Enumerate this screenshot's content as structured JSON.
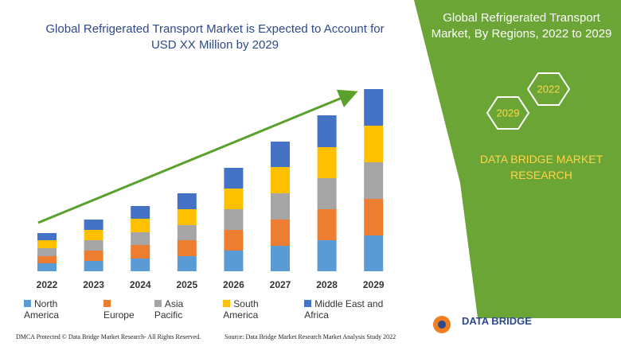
{
  "chart_data": {
    "type": "stacked_bar",
    "title": "Global Refrigerated Transport Market is Expected to Account for USD XX Million by 2029",
    "categories": [
      "2022",
      "2023",
      "2024",
      "2025",
      "2026",
      "2027",
      "2028",
      "2029"
    ],
    "series": [
      {
        "name": "North America",
        "color": "#5b9bd5",
        "values": [
          10,
          13,
          16,
          19,
          26,
          32,
          39,
          45
        ]
      },
      {
        "name": "Europe",
        "color": "#ed7d31",
        "values": [
          9,
          13,
          17,
          20,
          26,
          33,
          39,
          46
        ]
      },
      {
        "name": "Asia Pacific",
        "color": "#a5a5a5",
        "values": [
          10,
          13,
          16,
          19,
          26,
          33,
          39,
          46
        ]
      },
      {
        "name": "South America",
        "color": "#ffc000",
        "values": [
          10,
          13,
          17,
          20,
          26,
          33,
          39,
          46
        ]
      },
      {
        "name": "Middle East and Africa",
        "color": "#4472c4",
        "values": [
          9,
          13,
          16,
          20,
          26,
          32,
          40,
          46
        ]
      }
    ],
    "legend": "bottom"
  },
  "side_panel": {
    "title": "Global Refrigerated Transport Market, By Regions, 2022 to 2029",
    "badges": [
      "2022",
      "2029"
    ],
    "brand": "DATA BRIDGE MARKET RESEARCH"
  },
  "logo": "DATA BRIDGE",
  "footer": {
    "left": "DMCA Protected © Data Bridge Market Research- All Rights Reserved.",
    "right": "Source: Data Bridge Market Research Market Analysis Study 2022"
  }
}
